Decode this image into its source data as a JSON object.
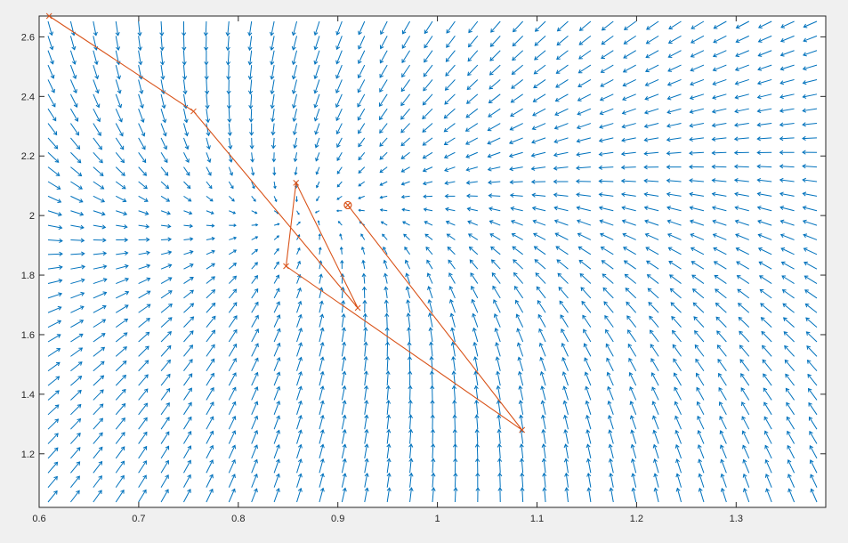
{
  "chart_data": {
    "type": "quiver",
    "title": "",
    "xlabel": "",
    "ylabel": "",
    "xlim": [
      0.6,
      1.39
    ],
    "ylim": [
      1.02,
      2.67
    ],
    "xticks": [
      0.6,
      0.7,
      0.8,
      0.9,
      1,
      1.1,
      1.2,
      1.3
    ],
    "xtick_labels": [
      "0.6",
      "0.7",
      "0.8",
      "0.9",
      "1",
      "1.1",
      "1.2",
      "1.3"
    ],
    "yticks": [
      1.2,
      1.4,
      1.6,
      1.8,
      2,
      2.2,
      2.4,
      2.6
    ],
    "ytick_labels": [
      "1.2",
      "1.4",
      "1.6",
      "1.8",
      "2",
      "2.2",
      "2.4",
      "2.6"
    ],
    "grid": false,
    "legend": "none",
    "vector_field": {
      "x_range": [
        0.6,
        1.39
      ],
      "y_range": [
        1.02,
        2.67
      ],
      "columns": 35,
      "rows": 34,
      "critical_point": [
        0.87,
        2.0
      ],
      "color": "#0072bd"
    },
    "series": [
      {
        "type": "line",
        "marker": "x",
        "color": "#d95319",
        "x": [
          0.61,
          0.755,
          0.92,
          0.858,
          0.848,
          1.085,
          0.91
        ],
        "y": [
          2.67,
          2.35,
          1.69,
          2.11,
          1.83,
          1.28,
          2.035
        ]
      },
      {
        "type": "point",
        "marker": "circle-x",
        "color": "#d95319",
        "x": [
          0.91
        ],
        "y": [
          2.035
        ]
      }
    ]
  }
}
